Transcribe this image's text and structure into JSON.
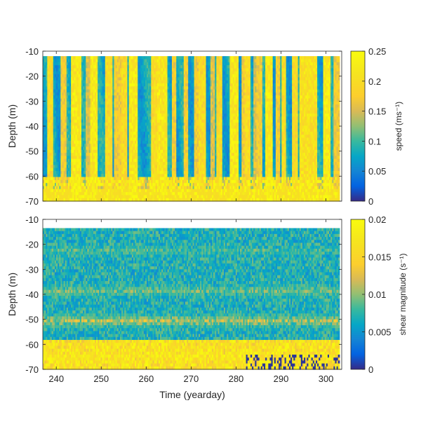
{
  "chart_data": [
    {
      "type": "heatmap",
      "title": "",
      "xlabel": "",
      "ylabel": "Depth (m)",
      "xlim": [
        237,
        303.5
      ],
      "ylim": [
        -70,
        -10
      ],
      "xticks": [
        240,
        250,
        260,
        270,
        280,
        290,
        300
      ],
      "yticks": [
        -10,
        -20,
        -30,
        -40,
        -50,
        -60,
        -70
      ],
      "show_xticklabels": false,
      "data_top_depth": -12,
      "colorbar": {
        "label": "speed (ms⁻¹)",
        "ticks": [
          0,
          0.05,
          0.1,
          0.15,
          0.2,
          0.25
        ],
        "tick_labels": [
          "0",
          "0.05",
          "0.1",
          "0.15",
          "0.2",
          "0.25"
        ],
        "range": [
          0,
          0.25
        ]
      },
      "bright_columns": [
        {
          "x": 238.5,
          "w": 0.8,
          "v": 0.9
        },
        {
          "x": 241.5,
          "w": 0.6,
          "v": 0.8
        },
        {
          "x": 244.3,
          "w": 1.1,
          "v": 1.0
        },
        {
          "x": 247.0,
          "w": 0.5,
          "v": 0.7
        },
        {
          "x": 248.2,
          "w": 0.9,
          "v": 1.0
        },
        {
          "x": 251.5,
          "w": 0.7,
          "v": 0.9
        },
        {
          "x": 253.5,
          "w": 0.8,
          "v": 0.8
        },
        {
          "x": 255.0,
          "w": 0.6,
          "v": 0.9
        },
        {
          "x": 257.0,
          "w": 0.9,
          "v": 1.0
        },
        {
          "x": 261.5,
          "w": 0.7,
          "v": 0.9
        },
        {
          "x": 263.4,
          "w": 1.0,
          "v": 1.0
        },
        {
          "x": 266.0,
          "w": 0.6,
          "v": 0.8
        },
        {
          "x": 268.6,
          "w": 0.5,
          "v": 0.8
        },
        {
          "x": 271.0,
          "w": 0.6,
          "v": 0.8
        },
        {
          "x": 272.3,
          "w": 0.8,
          "v": 0.9
        },
        {
          "x": 274.5,
          "w": 0.5,
          "v": 0.7
        },
        {
          "x": 276.0,
          "w": 0.7,
          "v": 0.9
        },
        {
          "x": 279.4,
          "w": 1.0,
          "v": 1.0
        },
        {
          "x": 281.5,
          "w": 0.5,
          "v": 0.8
        },
        {
          "x": 282.3,
          "w": 0.6,
          "v": 0.9
        },
        {
          "x": 284.0,
          "w": 0.4,
          "v": 0.7
        },
        {
          "x": 285.0,
          "w": 0.6,
          "v": 0.8
        },
        {
          "x": 287.2,
          "w": 0.8,
          "v": 1.0
        },
        {
          "x": 289.0,
          "w": 0.5,
          "v": 0.8
        },
        {
          "x": 290.6,
          "w": 0.5,
          "v": 0.9
        },
        {
          "x": 293.0,
          "w": 0.7,
          "v": 0.9
        },
        {
          "x": 296.0,
          "w": 2.0,
          "v": 0.95
        },
        {
          "x": 300.0,
          "w": 0.9,
          "v": 1.0
        },
        {
          "x": 302.2,
          "w": 0.6,
          "v": 0.8
        }
      ]
    },
    {
      "type": "heatmap",
      "title": "",
      "xlabel": "Time (yearday)",
      "ylabel": "Depth (m)",
      "xlim": [
        237,
        303.5
      ],
      "ylim": [
        -70,
        -10
      ],
      "xticks": [
        240,
        250,
        260,
        270,
        280,
        290,
        300
      ],
      "xtick_labels": [
        "240",
        "250",
        "260",
        "270",
        "280",
        "290",
        "300"
      ],
      "yticks": [
        -10,
        -20,
        -30,
        -40,
        -50,
        -60,
        -70
      ],
      "show_xticklabels": true,
      "data_top_depth": -13.5,
      "colorbar": {
        "label": "shear magnitude (s⁻¹)",
        "ticks": [
          0,
          0.005,
          0.01,
          0.015,
          0.02
        ],
        "tick_labels": [
          "0",
          "0.005",
          "0.01",
          "0.015",
          "0.02"
        ],
        "range": [
          0,
          0.02
        ]
      },
      "bright_bands": [
        {
          "depth": -22,
          "width": 3,
          "v": 0.55
        },
        {
          "depth": -38,
          "width": 4,
          "v": 0.6
        },
        {
          "depth": -50,
          "width": 4,
          "v": 0.7
        },
        {
          "depth": -64,
          "width": 6,
          "v": 1.0
        }
      ]
    }
  ]
}
